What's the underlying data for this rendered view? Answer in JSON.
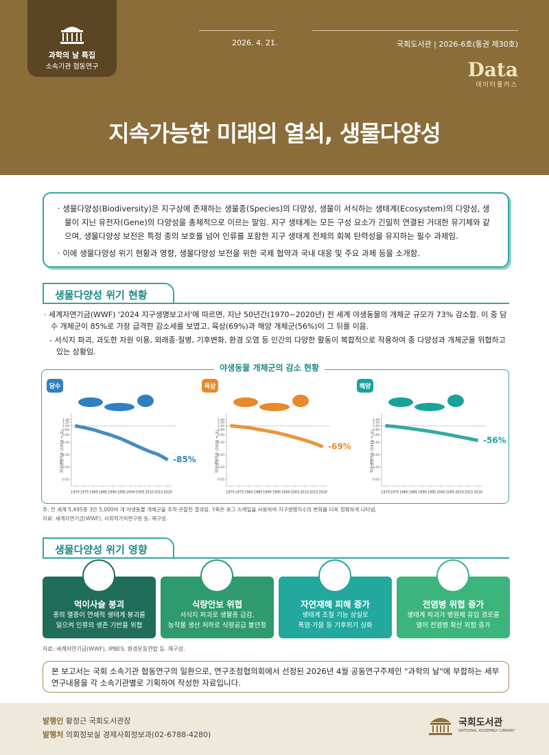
{
  "header": {
    "badge_title": "과학의 날 특집",
    "badge_subtitle": "소속기관 협동연구",
    "date": "2026. 4. 21.",
    "publisher": "국회도서관",
    "issue": "2026-6호(통권 제30호)",
    "brand": "Data",
    "brand_sub": "데이터플러스",
    "title": "지속가능한 미래의 열쇠, 생물다양성"
  },
  "summary": [
    "생물다양성(Biodiversity)은 지구상에 존재하는 생물종(Species)의 다양성, 생물이 서식하는 생태계(Ecosystem)의 다양성, 생물이 지닌 유전자(Gene)의 다양성을 총체적으로 이르는 말임. 지구 생태계는 모든 구성 요소가 긴밀히 연결된 거대한 유기체와 같으며, 생물다양성 보전은 특정 종의 보호를 넘어 인류를 포함한 지구 생태계 전체의 회복 탄력성을 유지하는 필수 과제임.",
    "이에 생물다양성 위기 현황과 영향, 생물다양성 보전을 위한 국제 협약과 국내 대응 및 주요 과제 등을 소개함."
  ],
  "section1": {
    "heading": "생물다양성 위기 현황",
    "bullet": "세계자연기금(WWF) '2024 지구생명보고서'에 따르면, 지난 50년간(1970~2020년) 전 세계 야생동물의 개체군 규모가 73% 감소함. 이 중 담수 개체군이 85%로 가장 급격한 감소세를 보였고, 육상(69%)과 해양 개체군(56%)이 그 뒤를 이음.",
    "sub_bullet": "서식지 파괴, 과도한 자원 이용, 외래종·질병, 기후변화, 환경 오염 등 인간의 다양한 활동이 복합적으로 작용하여 종 다양성과 개체군을 위협하고 있는 상황임.",
    "figure_title": "야생동물 개체군의 감소 현황",
    "note": "주: 전 세계 5,495종 3만 5,000여 개 야생동물 개체군을 추적·관찰한 결과임. Y축은 로그 스케일을 사용하여 지구생명지수의 변화를 더욱 정확하게 나타냄.",
    "source": "자료: 세계자연기금(WWF), 사회적가치연구원 등. 재구성."
  },
  "chart_data": [
    {
      "type": "line",
      "label": "담수",
      "ylabel": "지구생명지수 (1970 = 1)",
      "color": "#2f7fc1",
      "yscale": "log",
      "x": [
        1970,
        1975,
        1980,
        1985,
        1990,
        1995,
        2000,
        2005,
        2010,
        2015,
        2020
      ],
      "values": [
        1,
        0.9,
        0.8,
        0.68,
        0.58,
        0.48,
        0.38,
        0.3,
        0.24,
        0.2,
        0.15
      ],
      "xlim": [
        1968,
        2022
      ],
      "xticks": [
        1970,
        1975,
        1980,
        1985,
        1990,
        1995,
        2000,
        2005,
        2010,
        2015,
        2020
      ],
      "ylim": [
        0.035,
        1.6
      ],
      "yticks": [
        0.05,
        {
          "value": 0.1,
          "label": "0.10"
        },
        {
          "value": 0.2,
          "label": "0.20"
        },
        {
          "value": 0.4,
          "label": "0.40"
        },
        {
          "value": 0.6,
          "label": "0.60"
        },
        {
          "value": 0.8,
          "label": "0.80"
        },
        {
          "value": 1,
          "label": "1.00"
        },
        {
          "value": 1.2,
          "label": "1.20"
        },
        {
          "value": 1.4,
          "label": "1.40"
        }
      ],
      "annotation": "-85%"
    },
    {
      "type": "line",
      "label": "육상",
      "ylabel": "지구생명지수 (1970 = 1)",
      "color": "#e8892a",
      "yscale": "log",
      "x": [
        1970,
        1975,
        1980,
        1985,
        1990,
        1995,
        2000,
        2005,
        2010,
        2015,
        2020
      ],
      "values": [
        1,
        0.95,
        0.9,
        0.82,
        0.75,
        0.68,
        0.6,
        0.52,
        0.45,
        0.38,
        0.31
      ],
      "xlim": [
        1968,
        2022
      ],
      "xticks": [
        1970,
        1975,
        1980,
        1985,
        1990,
        1995,
        2000,
        2005,
        2010,
        2015,
        2020
      ],
      "ylim": [
        0.035,
        1.6
      ],
      "yticks": [
        0.05,
        {
          "value": 0.1,
          "label": "0.10"
        },
        {
          "value": 0.2,
          "label": "0.20"
        },
        {
          "value": 0.4,
          "label": "0.40"
        },
        {
          "value": 0.6,
          "label": "0.60"
        },
        {
          "value": 0.8,
          "label": "0.80"
        },
        {
          "value": 1,
          "label": "1.00"
        },
        {
          "value": 1.2,
          "label": "1.20"
        },
        {
          "value": 1.4,
          "label": "1.40"
        }
      ],
      "annotation": "-69%"
    },
    {
      "type": "line",
      "label": "해양",
      "ylabel": "지구생명지수 (1970 = 1)",
      "color": "#17a39a",
      "yscale": "log",
      "x": [
        1970,
        1975,
        1980,
        1985,
        1990,
        1995,
        2000,
        2005,
        2010,
        2015,
        2020
      ],
      "values": [
        1,
        0.96,
        0.9,
        0.84,
        0.78,
        0.72,
        0.66,
        0.6,
        0.54,
        0.49,
        0.44
      ],
      "xlim": [
        1968,
        2022
      ],
      "xticks": [
        1970,
        1975,
        1980,
        1985,
        1990,
        1995,
        2000,
        2005,
        2010,
        2015,
        2020
      ],
      "ylim": [
        0.035,
        1.6
      ],
      "yticks": [
        0.05,
        {
          "value": 0.1,
          "label": "0.10"
        },
        {
          "value": 0.2,
          "label": "0.20"
        },
        {
          "value": 0.4,
          "label": "0.40"
        },
        {
          "value": 0.6,
          "label": "0.60"
        },
        {
          "value": 0.8,
          "label": "0.80"
        },
        {
          "value": 1,
          "label": "1.00"
        },
        {
          "value": 1.2,
          "label": "1.20"
        },
        {
          "value": 1.4,
          "label": "1.40"
        }
      ],
      "annotation": "-56%"
    }
  ],
  "section2": {
    "heading": "생물다양성 위기 영향",
    "cards": [
      {
        "title": "먹이사슬 붕괴",
        "lines": [
          "종의 멸종이 연쇄적 생태계 붕괴를",
          "일으켜 인류의 생존 기반을 위협"
        ]
      },
      {
        "title": "식량안보 위협",
        "lines": [
          "서식지 파괴로 생물종 급감,",
          "농작물 생산 저하로 식량공급 불안정"
        ]
      },
      {
        "title": "자연재해 피해 증가",
        "lines": [
          "생태계 조절 기능 상실로",
          "폭염·가뭄 등 기후위기 심화"
        ]
      },
      {
        "title": "전염병 위협 증가",
        "lines": [
          "생태계 파괴가 병원체 유입 경로를",
          "열어 전염병 확산 위험 증가"
        ]
      }
    ],
    "source": "자료: 세계자연기금(WWF), IPBES, 환경운동연합 등. 재구성."
  },
  "closing": "본 보고서는 국회 소속기관 협동연구의 일환으로, 연구조정협의회에서 선정된 2026년 4월 공동연구주제인 \"과학의 날\"에 부합하는 세부 연구내용을 각 소속기관별로 기획하여 작성한 자료입니다.",
  "footer": {
    "issuer_label": "발행인",
    "issuer": "황정근 국회도서관장",
    "office_label": "발행처",
    "office": "의회정보실 경제사회정보과(02-6788-4280)",
    "logo": "국회도서관",
    "logo_en": "NATIONAL ASSEMBLY LIBRARY"
  }
}
